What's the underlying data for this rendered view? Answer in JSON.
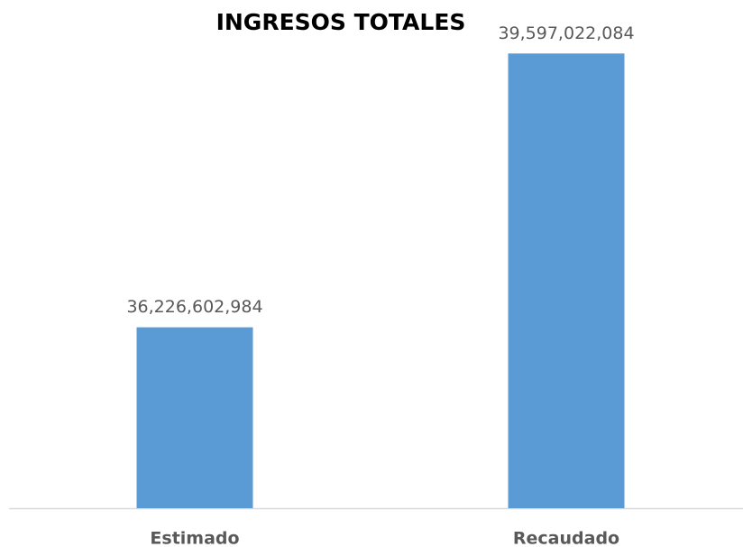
{
  "chart_data": {
    "type": "bar",
    "title": "INGRESOS TOTALES",
    "categories": [
      "Estimado",
      "Recaudado"
    ],
    "values": [
      36226602984,
      39597022084
    ],
    "value_labels": [
      "36,226,602,984",
      "39,597,022,084"
    ],
    "color": "#5b9bd5",
    "ylim": [
      34000000000,
      40000000000
    ]
  }
}
